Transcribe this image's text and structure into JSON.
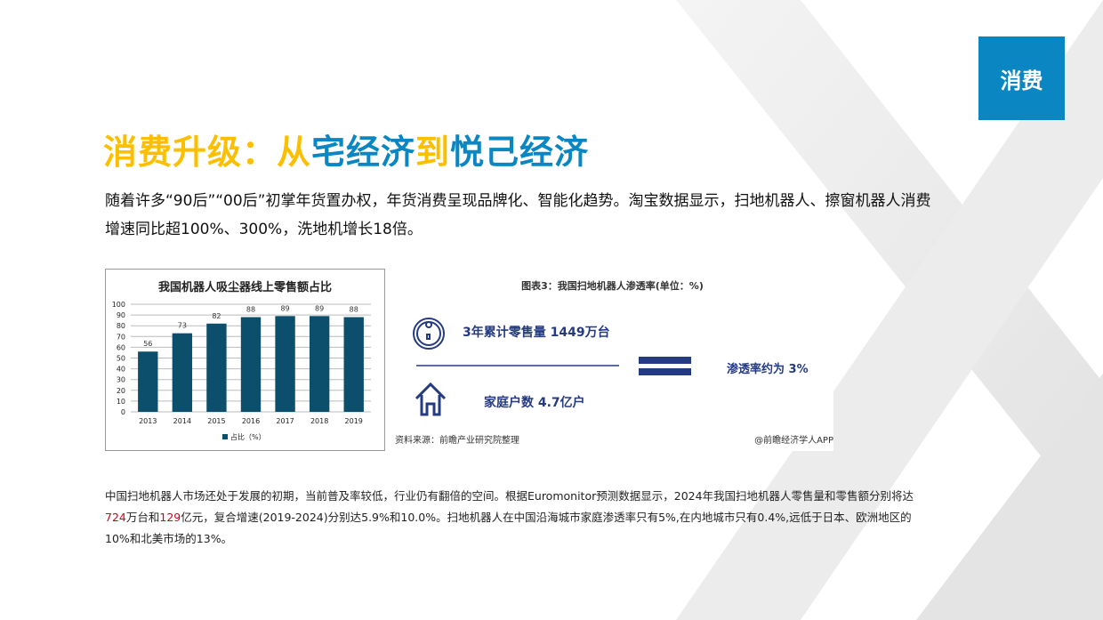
{
  "tag": "消费",
  "title": {
    "part1": "消费升级：从",
    "part2": "宅经济",
    "part3": "到",
    "part4": "悦己经济"
  },
  "intro": "随着许多“90后”“00后”初掌年货置办权，年货消费呈现品牌化、智能化趋势。淘宝数据显示，扫地机器人、擦窗机器人消费增速同比超100%、300%，洗地机增长18倍。",
  "chart_data": {
    "type": "bar",
    "title": "我国机器人吸尘器线上零售额占比",
    "categories": [
      "2013",
      "2014",
      "2015",
      "2016",
      "2017",
      "2018",
      "2019"
    ],
    "series": [
      {
        "name": "占比（%）",
        "values": [
          56,
          73,
          82,
          88,
          89,
          89,
          88
        ]
      }
    ],
    "yticks": [
      "0",
      "10",
      "20",
      "30",
      "40",
      "50",
      "60",
      "70",
      "80",
      "90",
      "100"
    ],
    "ylim": [
      0,
      100
    ],
    "grid": true,
    "legend": "bottom",
    "color": "#0b4f6c"
  },
  "panel": {
    "title": "图表3：我国扫地机器人渗透率(单位：%)",
    "sales": "3年累计零售量  1449万台",
    "households": "家庭户数  4.7亿户",
    "result": "渗透率约为  3%",
    "source": "资料来源：前瞻产业研究院整理",
    "credit": "@前瞻经济学人APP",
    "icons": [
      "robot-vacuum-icon",
      "house-icon",
      "equals-icon"
    ],
    "accent": "#243b82"
  },
  "footer": {
    "s1": "中国扫地机器人市场还处于发展的初期，当前普及率较低，行业仍有翻倍的空间。根据Euromonitor预测数据显示，2024年我国扫地机器人零售量和零售额分别将达",
    "v1": "724",
    "s2": "万台和",
    "v2": "129",
    "s3": "亿元，复合增速(2019-2024)分别达5.9%和10.0%。扫地机器人在中国沿海城市家庭渗透率只有5%,在内地城市只有0.4%,远低于日本、欧洲地区的10%和北美市场的13%。"
  }
}
